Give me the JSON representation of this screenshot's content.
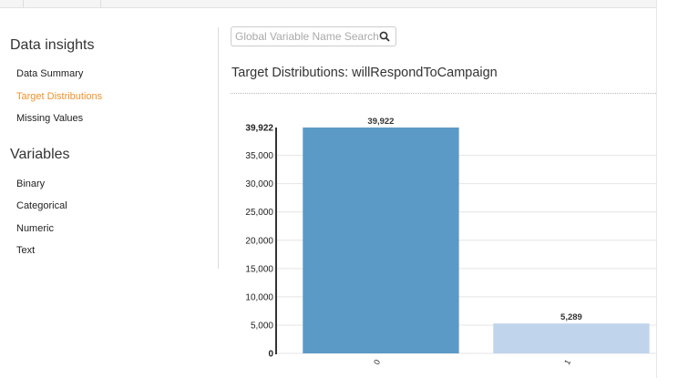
{
  "sidebar": {
    "insights_heading": "Data insights",
    "insights_items": [
      {
        "label": "Data Summary"
      },
      {
        "label": "Target Distributions",
        "active": true
      },
      {
        "label": "Missing Values"
      }
    ],
    "variables_heading": "Variables",
    "variables_items": [
      {
        "label": "Binary"
      },
      {
        "label": "Categorical"
      },
      {
        "label": "Numeric"
      },
      {
        "label": "Text"
      }
    ]
  },
  "search": {
    "placeholder": "Global Variable Name Search",
    "icon": "search-icon"
  },
  "main": {
    "title": "Target Distributions: willRespondToCampaign"
  },
  "colors": {
    "accent": "#f0932b",
    "bar0": "#5b9ac6",
    "bar1": "#c0d4ec"
  },
  "chart_data": {
    "type": "bar",
    "categories": [
      "0",
      "1"
    ],
    "values": [
      39922,
      5289
    ],
    "data_labels": [
      "39,922",
      "5,289"
    ],
    "yticks": [
      0,
      5000,
      10000,
      15000,
      20000,
      25000,
      30000,
      35000,
      39922
    ],
    "ytick_labels": [
      "0",
      "5,000",
      "10,000",
      "15,000",
      "20,000",
      "25,000",
      "30,000",
      "35,000",
      "39,922"
    ],
    "ylim": [
      0,
      39922
    ],
    "grid": true,
    "xlabel": "",
    "ylabel": "",
    "title": ""
  }
}
